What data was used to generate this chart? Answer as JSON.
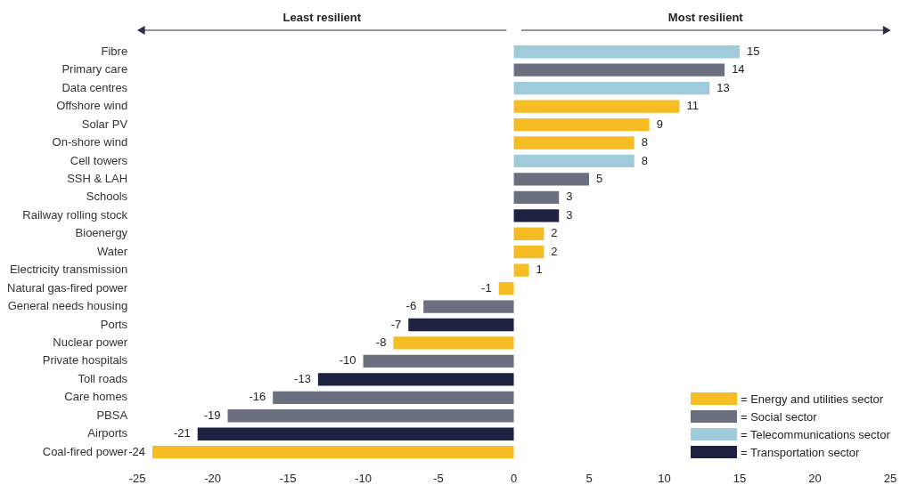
{
  "chart_data": {
    "type": "bar",
    "orientation": "horizontal",
    "stacked": true,
    "categories": [
      "Fibre",
      "Primary care",
      "Data centres",
      "Offshore wind",
      "Solar PV",
      "On-shore wind",
      "Cell towers",
      "SSH & LAH",
      "Schools",
      "Railway rolling stock",
      "Bioenergy",
      "Water",
      "Electricity transmission",
      "Natural gas-fired power",
      "General needs housing",
      "Ports",
      "Nuclear power",
      "Private hospitals",
      "Toll roads",
      "Care homes",
      "PBSA",
      "Airports",
      "Coal-fired power"
    ],
    "series": [
      {
        "name": "= Energy and utilities sector",
        "color": "#f5bd23",
        "values": [
          null,
          null,
          null,
          11,
          9,
          8,
          null,
          null,
          null,
          null,
          2,
          2,
          1,
          -1,
          null,
          null,
          -8,
          null,
          null,
          null,
          null,
          null,
          -24
        ]
      },
      {
        "name": "= Social sector",
        "color": "#6b6f80",
        "values": [
          null,
          14,
          null,
          null,
          null,
          null,
          null,
          5,
          3,
          null,
          null,
          null,
          null,
          null,
          -6,
          null,
          null,
          -10,
          null,
          -16,
          -19,
          null,
          null
        ]
      },
      {
        "name": "= Telecommunications sector",
        "color": "#9fcbdb",
        "values": [
          15,
          null,
          13,
          null,
          null,
          null,
          8,
          null,
          null,
          null,
          null,
          null,
          null,
          null,
          null,
          null,
          null,
          null,
          null,
          null,
          null,
          null,
          null
        ]
      },
      {
        "name": "= Transportation sector",
        "color": "#1d2340",
        "values": [
          null,
          null,
          null,
          null,
          null,
          null,
          null,
          null,
          null,
          3,
          null,
          null,
          null,
          null,
          null,
          -7,
          null,
          null,
          -13,
          null,
          null,
          -21,
          null
        ]
      }
    ],
    "xlim": [
      -25,
      25
    ],
    "xticks": [
      -25,
      -20,
      -15,
      -10,
      -5,
      0,
      5,
      10,
      15,
      20,
      25
    ],
    "grid": false,
    "legend": "bottom right",
    "data_labels": true,
    "annotations": [
      "Least resilient",
      "Most resilient"
    ]
  }
}
